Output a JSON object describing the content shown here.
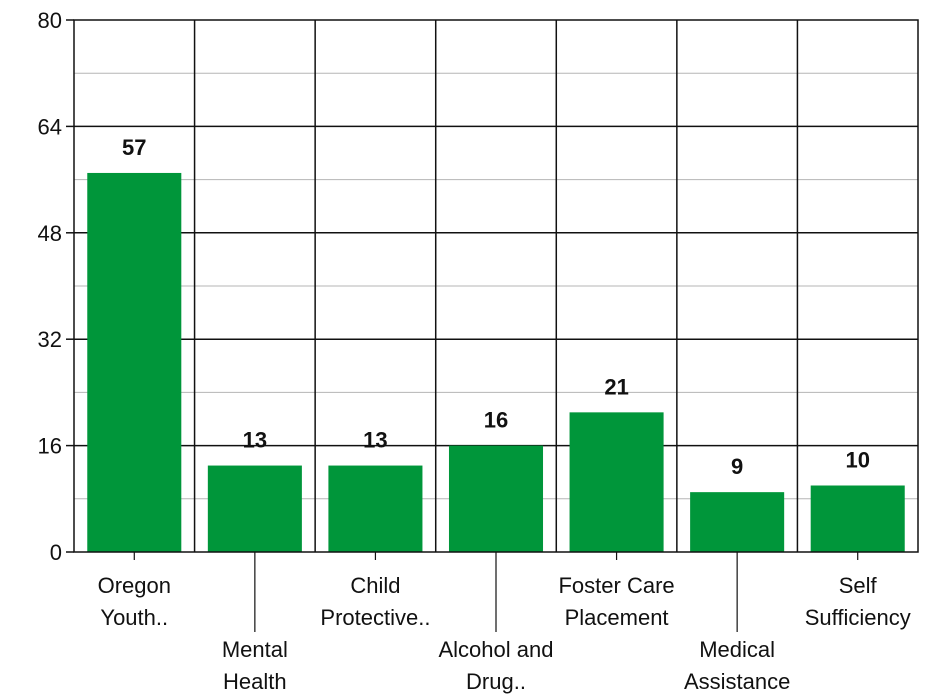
{
  "chart_data": {
    "type": "bar",
    "categories": [
      [
        "Oregon",
        "Youth.."
      ],
      [
        "Mental",
        "Health"
      ],
      [
        "Child",
        "Protective.."
      ],
      [
        "Alcohol and",
        "Drug.."
      ],
      [
        "Foster Care",
        "Placement"
      ],
      [
        "Medical",
        "Assistance"
      ],
      [
        "Self",
        "Sufficiency"
      ]
    ],
    "values": [
      57,
      13,
      13,
      16,
      21,
      9,
      10
    ],
    "data_labels": [
      "57",
      "13",
      "13",
      "16",
      "21",
      "9",
      "10"
    ],
    "yticks": [
      0,
      16,
      32,
      48,
      64,
      80
    ],
    "ytick_labels": [
      "0",
      "16",
      "32",
      "48",
      "64",
      "80"
    ],
    "ylim": [
      0,
      80
    ],
    "minor_step": 8,
    "grid": true,
    "bar_color": "#00963A",
    "title": "",
    "xlabel": "",
    "ylabel": ""
  }
}
